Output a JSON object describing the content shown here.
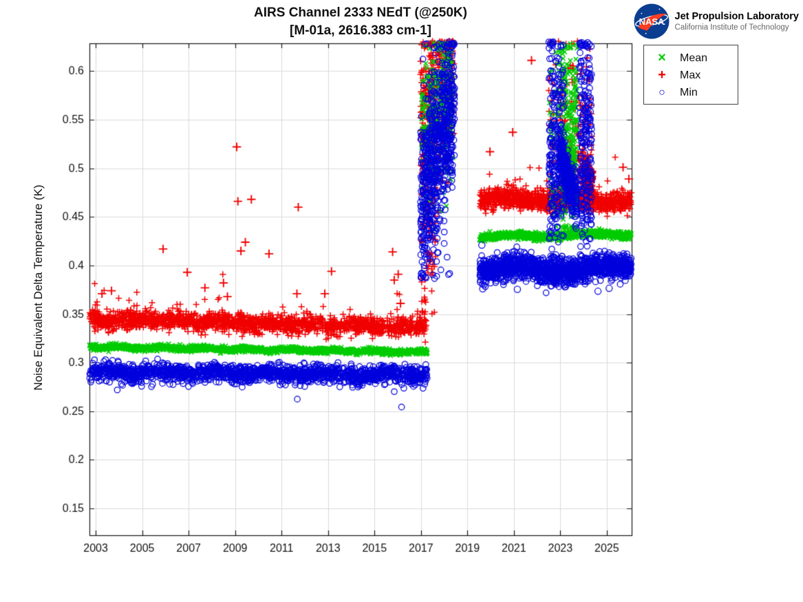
{
  "header": {
    "nasa_text": "NASA",
    "org_name": "Jet Propulsion Laboratory",
    "org_sub": "California Institute of Technology",
    "logo_blue": "#0b3d91",
    "logo_red": "#fc3d21"
  },
  "chart_data": {
    "type": "scatter",
    "title": "AIRS Channel 2333 NEdT (@250K)",
    "subtitle": "[M-01a, 2616.383 cm-1]",
    "xlabel": "",
    "ylabel": "Noise Equivalent Delta Temperature (K)",
    "xlim": [
      2002.73,
      2026.07
    ],
    "ylim": [
      0.1225,
      0.6285
    ],
    "grid": true,
    "axis_color": "#111111",
    "grid_color": "#dadada",
    "xticks": {
      "values": [
        2003,
        2005,
        2007,
        2009,
        2011,
        2013,
        2015,
        2017,
        2019,
        2021,
        2023,
        2025
      ],
      "labels": [
        "2003",
        "2005",
        "2007",
        "2009",
        "2011",
        "2013",
        "2015",
        "2017",
        "2019",
        "2021",
        "2023",
        "2025"
      ]
    },
    "yticks": {
      "values": [
        0.15,
        0.2,
        0.25,
        0.3,
        0.35,
        0.4,
        0.45,
        0.5,
        0.55,
        0.6
      ],
      "labels": [
        "0.15",
        "0.2",
        "0.25",
        "0.3",
        "0.35",
        "0.4",
        "0.45",
        "0.5",
        "0.55",
        "0.6"
      ]
    },
    "legend": {
      "position": "outside-top-right",
      "entries": [
        {
          "label": "Mean",
          "marker": "x",
          "color": "#00cc00"
        },
        {
          "label": "Max",
          "marker": "plus",
          "color": "#f10000"
        },
        {
          "label": "Min",
          "marker": "circle",
          "color": "#0000dd"
        }
      ]
    },
    "series": [
      {
        "name": "Max",
        "marker": "plus",
        "color": "#f10000",
        "segments": [
          {
            "phase": "era1-band",
            "t0": 2002.74,
            "t1": 2017.27,
            "v0": 0.3447,
            "v1": 0.3365,
            "sd": 0.0045,
            "n": 1700,
            "wiggle": [
              0.0012,
              0.5
            ],
            "fringe": [
              0.04,
              0.016,
              1
            ]
          },
          {
            "phase": "2017-low",
            "t0": 2017.0,
            "t1": 2017.62,
            "v0": 0.415,
            "v1": 0.45,
            "sd": 0.045,
            "n": 80,
            "clamp": [
              0.35,
              0.56
            ]
          },
          {
            "phase": "2017-18-column",
            "t0": 2016.98,
            "t1": 2018.42,
            "v0": 0.545,
            "v1": 0.6,
            "sd": 0.047,
            "n": 430,
            "clamp": [
              0.4,
              0.631
            ]
          },
          {
            "phase": "era2-band",
            "t0": 2019.53,
            "t1": 2026.05,
            "v0": 0.4678,
            "v1": 0.4658,
            "sd": 0.005,
            "n": 1100,
            "wiggle": [
              0.002,
              0.35
            ],
            "fringe": [
              0.03,
              0.02,
              1
            ]
          },
          {
            "phase": "2022-24-scatter",
            "t0": 2022.5,
            "t1": 2024.4,
            "v0": 0.53,
            "v1": 0.53,
            "sd": 0.05,
            "n": 190,
            "clamp": [
              0.468,
              0.631
            ]
          },
          {
            "phase": "2024-elevated",
            "t0": 2023.93,
            "t1": 2024.42,
            "v0": 0.489,
            "v1": 0.484,
            "sd": 0.011,
            "n": 170
          },
          {
            "phase": "2023-elevated",
            "t0": 2023.3,
            "t1": 2023.55,
            "v0": 0.506,
            "v1": 0.502,
            "sd": 0.009,
            "n": 55
          }
        ],
        "outliers": [
          [
            2003.27,
            0.371
          ],
          [
            2003.68,
            0.374
          ],
          [
            2005.9,
            0.417
          ],
          [
            2006.94,
            0.393
          ],
          [
            2007.7,
            0.377
          ],
          [
            2008.5,
            0.382
          ],
          [
            2008.67,
            0.368
          ],
          [
            2009.07,
            0.522
          ],
          [
            2009.12,
            0.466
          ],
          [
            2009.25,
            0.415
          ],
          [
            2009.44,
            0.424
          ],
          [
            2009.7,
            0.468
          ],
          [
            2010.46,
            0.412
          ],
          [
            2011.66,
            0.371
          ],
          [
            2011.72,
            0.46
          ],
          [
            2012.86,
            0.371
          ],
          [
            2013.15,
            0.394
          ],
          [
            2015.78,
            0.414
          ],
          [
            2015.85,
            0.385
          ],
          [
            2016.02,
            0.391
          ],
          [
            2016.12,
            0.361
          ],
          [
            2019.97,
            0.517
          ],
          [
            2020.95,
            0.537
          ],
          [
            2021.76,
            0.611
          ],
          [
            2025.7,
            0.501
          ],
          [
            2025.95,
            0.489
          ]
        ]
      },
      {
        "name": "Mean",
        "marker": "x",
        "color": "#00cc00",
        "segments": [
          {
            "phase": "era1-band",
            "t0": 2002.74,
            "t1": 2017.27,
            "v0": 0.3162,
            "v1": 0.3108,
            "sd": 0.0014,
            "n": 1700,
            "wiggle": [
              0.0008,
              0.55
            ]
          },
          {
            "phase": "2017-18-column",
            "t0": 2017.0,
            "t1": 2018.38,
            "v0": 0.525,
            "v1": 0.585,
            "sd": 0.043,
            "n": 300,
            "clamp": [
              0.435,
              0.629
            ]
          },
          {
            "phase": "era2-band",
            "t0": 2019.53,
            "t1": 2026.05,
            "v0": 0.4293,
            "v1": 0.4323,
            "sd": 0.0017,
            "n": 1100,
            "wiggle": [
              0.0013,
              0.3
            ]
          },
          {
            "phase": "2022-scatter",
            "t0": 2022.52,
            "t1": 2023.0,
            "v0": 0.55,
            "v1": 0.55,
            "sd": 0.05,
            "n": 45,
            "clamp": [
              0.44,
              0.625
            ]
          },
          {
            "phase": "2023-column",
            "t0": 2023.03,
            "t1": 2023.72,
            "v0": 0.53,
            "v1": 0.52,
            "sd": 0.055,
            "n": 300,
            "clamp": [
              0.436,
              0.629
            ]
          }
        ],
        "outliers": []
      },
      {
        "name": "Min",
        "marker": "circle",
        "color": "#0000dd",
        "segments": [
          {
            "phase": "era1-band",
            "t0": 2002.74,
            "t1": 2017.27,
            "v0": 0.2901,
            "v1": 0.2873,
            "sd": 0.0046,
            "n": 1700,
            "wiggle": [
              0.0012,
              0.4
            ],
            "fringe": [
              0.02,
              0.009,
              -1
            ]
          },
          {
            "phase": "2017-18-diagonal",
            "t0": 2016.98,
            "t1": 2018.45,
            "v0": 0.452,
            "v1": 0.585,
            "sd": 0.043,
            "n": 650,
            "clamp": [
              0.386,
              0.63
            ]
          },
          {
            "phase": "2017-18-sprinkle",
            "t0": 2017.0,
            "t1": 2018.4,
            "v0": 0.5,
            "v1": 0.52,
            "sd": 0.075,
            "n": 90,
            "clamp": [
              0.388,
              0.63
            ]
          },
          {
            "phase": "era2-band",
            "t0": 2019.53,
            "t1": 2026.05,
            "v0": 0.3953,
            "v1": 0.3966,
            "sd": 0.0062,
            "n": 1450,
            "wiggle": [
              0.0035,
              0.25
            ],
            "fringe": [
              0.015,
              0.011,
              -1
            ]
          },
          {
            "phase": "2022-column",
            "t0": 2022.5,
            "t1": 2023.15,
            "v0": 0.52,
            "v1": 0.52,
            "sd": 0.06,
            "n": 260,
            "clamp": [
              0.405,
              0.63
            ]
          },
          {
            "phase": "2023-blob",
            "t0": 2022.95,
            "t1": 2023.72,
            "v0": 0.514,
            "v1": 0.463,
            "sd": 0.013,
            "n": 300
          },
          {
            "phase": "2024-column",
            "t0": 2023.82,
            "t1": 2024.35,
            "v0": 0.53,
            "v1": 0.53,
            "sd": 0.06,
            "n": 240,
            "clamp": [
              0.405,
              0.63
            ]
          }
        ],
        "outliers": [
          [
            2019.62,
            0.421
          ],
          [
            2019.66,
            0.376
          ],
          [
            2021.15,
            0.3755
          ],
          [
            2024.62,
            0.3735
          ],
          [
            2025.1,
            0.3765
          ]
        ]
      }
    ]
  }
}
